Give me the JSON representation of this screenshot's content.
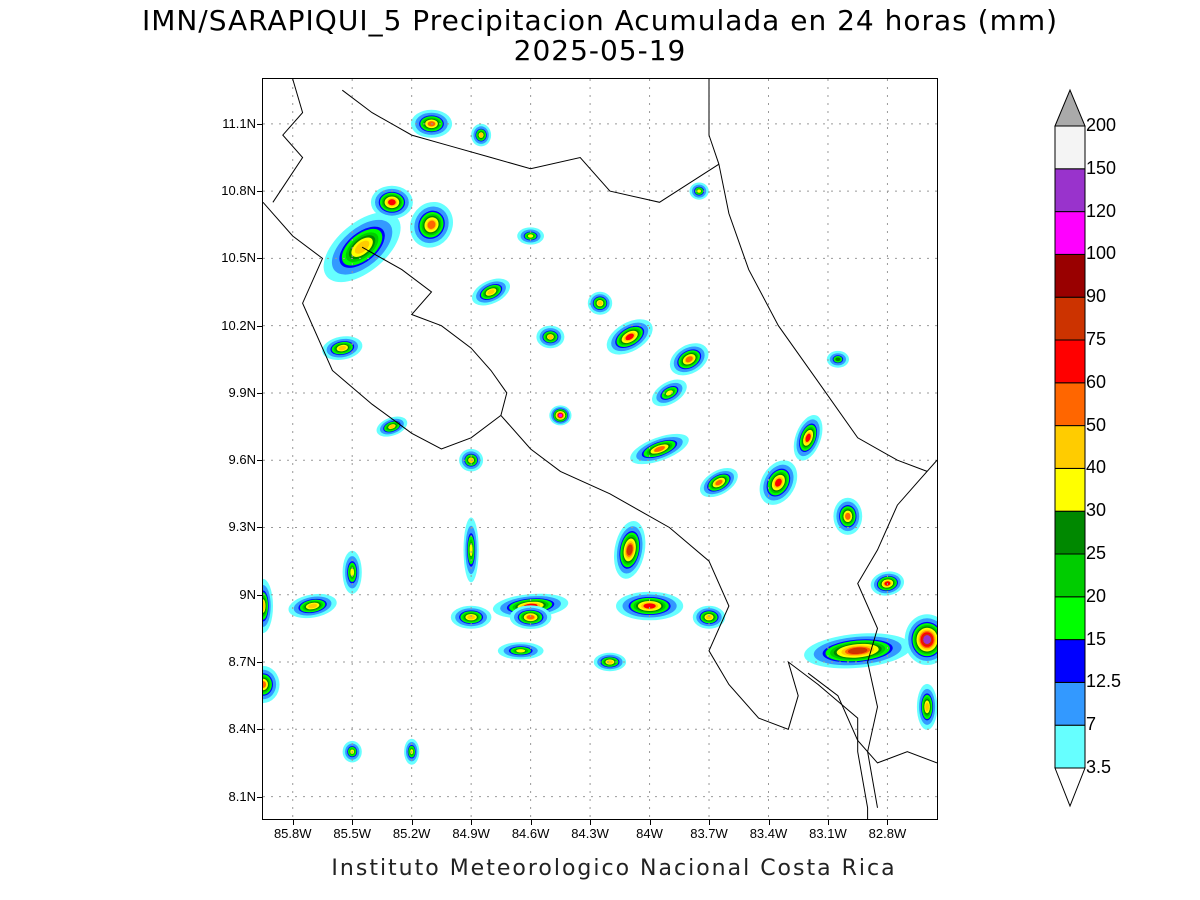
{
  "header": {
    "title_line1": "IMN/SARAPIQUI_5 Precipitacion Acumulada en 24 horas (mm)",
    "title_line2": "2025-05-19"
  },
  "footer": {
    "credit": "Instituto Meteorologico Nacional Costa Rica"
  },
  "map": {
    "lat_range": [
      8.0,
      11.3
    ],
    "lon_range": [
      -85.95,
      -82.55
    ],
    "lat_ticks": [
      {
        "value": 11.1,
        "label": "11.1N"
      },
      {
        "value": 10.8,
        "label": "10.8N"
      },
      {
        "value": 10.5,
        "label": "10.5N"
      },
      {
        "value": 10.2,
        "label": "10.2N"
      },
      {
        "value": 9.9,
        "label": "9.9N"
      },
      {
        "value": 9.6,
        "label": "9.6N"
      },
      {
        "value": 9.3,
        "label": "9.3N"
      },
      {
        "value": 9.0,
        "label": "9N"
      },
      {
        "value": 8.7,
        "label": "8.7N"
      },
      {
        "value": 8.4,
        "label": "8.4N"
      },
      {
        "value": 8.1,
        "label": "8.1N"
      }
    ],
    "lon_ticks": [
      {
        "value": -85.8,
        "label": "85.8W"
      },
      {
        "value": -85.5,
        "label": "85.5W"
      },
      {
        "value": -85.2,
        "label": "85.2W"
      },
      {
        "value": -84.9,
        "label": "84.9W"
      },
      {
        "value": -84.6,
        "label": "84.6W"
      },
      {
        "value": -84.3,
        "label": "84.3W"
      },
      {
        "value": -84.0,
        "label": "84W"
      },
      {
        "value": -83.7,
        "label": "83.7W"
      },
      {
        "value": -83.4,
        "label": "83.4W"
      },
      {
        "value": -83.1,
        "label": "83.1W"
      },
      {
        "value": -82.8,
        "label": "82.8W"
      }
    ],
    "grid": true
  },
  "legend": {
    "bins": [
      {
        "label": "3.5",
        "color": "#66ffff"
      },
      {
        "label": "7",
        "color": "#3399ff"
      },
      {
        "label": "12.5",
        "color": "#0000ff"
      },
      {
        "label": "15",
        "color": "#00ff00"
      },
      {
        "label": "20",
        "color": "#00cc00"
      },
      {
        "label": "25",
        "color": "#008800"
      },
      {
        "label": "30",
        "color": "#ffff00"
      },
      {
        "label": "40",
        "color": "#ffcc00"
      },
      {
        "label": "50",
        "color": "#ff6600"
      },
      {
        "label": "60",
        "color": "#ff0000"
      },
      {
        "label": "75",
        "color": "#cc3300"
      },
      {
        "label": "90",
        "color": "#990000"
      },
      {
        "label": "100",
        "color": "#ff00ff"
      },
      {
        "label": "120",
        "color": "#9933cc"
      },
      {
        "label": "150",
        "color": "#f4f4f4"
      },
      {
        "label": "200",
        "color": "#aaaaaa"
      }
    ],
    "under_color": "#ffffff",
    "over_color": "#aaaaaa"
  },
  "precip_cells": [
    {
      "lon": -85.45,
      "lat": 10.55,
      "peak": 45,
      "ax": 0.12,
      "ay": 0.2,
      "rot": 50
    },
    {
      "lon": -85.3,
      "lat": 10.75,
      "peak": 60,
      "ax": 0.1,
      "ay": 0.07,
      "rot": 0
    },
    {
      "lon": -85.1,
      "lat": 10.65,
      "peak": 55,
      "ax": 0.1,
      "ay": 0.1,
      "rot": 30
    },
    {
      "lon": -85.1,
      "lat": 11.1,
      "peak": 50,
      "ax": 0.1,
      "ay": 0.06,
      "rot": 0
    },
    {
      "lon": -85.55,
      "lat": 10.1,
      "peak": 45,
      "ax": 0.1,
      "ay": 0.05,
      "rot": -10
    },
    {
      "lon": -84.8,
      "lat": 10.35,
      "peak": 45,
      "ax": 0.1,
      "ay": 0.05,
      "rot": -25
    },
    {
      "lon": -84.5,
      "lat": 10.15,
      "peak": 40,
      "ax": 0.07,
      "ay": 0.05,
      "rot": 0
    },
    {
      "lon": -84.1,
      "lat": 10.15,
      "peak": 60,
      "ax": 0.12,
      "ay": 0.06,
      "rot": -30
    },
    {
      "lon": -84.25,
      "lat": 10.3,
      "peak": 45,
      "ax": 0.06,
      "ay": 0.05,
      "rot": 0
    },
    {
      "lon": -83.8,
      "lat": 10.05,
      "peak": 55,
      "ax": 0.1,
      "ay": 0.06,
      "rot": -30
    },
    {
      "lon": -83.9,
      "lat": 9.9,
      "peak": 30,
      "ax": 0.1,
      "ay": 0.05,
      "rot": -30
    },
    {
      "lon": -84.45,
      "lat": 9.8,
      "peak": 100,
      "ax": 0.05,
      "ay": 0.04,
      "rot": 0
    },
    {
      "lon": -83.95,
      "lat": 9.65,
      "peak": 50,
      "ax": 0.15,
      "ay": 0.05,
      "rot": -20
    },
    {
      "lon": -83.65,
      "lat": 9.5,
      "peak": 55,
      "ax": 0.1,
      "ay": 0.05,
      "rot": -30
    },
    {
      "lon": -83.35,
      "lat": 9.5,
      "peak": 60,
      "ax": 0.08,
      "ay": 0.1,
      "rot": 30
    },
    {
      "lon": -83.2,
      "lat": 9.7,
      "peak": 60,
      "ax": 0.06,
      "ay": 0.1,
      "rot": 20
    },
    {
      "lon": -83.0,
      "lat": 9.35,
      "peak": 50,
      "ax": 0.07,
      "ay": 0.08,
      "rot": 0
    },
    {
      "lon": -84.9,
      "lat": 9.6,
      "peak": 40,
      "ax": 0.06,
      "ay": 0.05,
      "rot": 0
    },
    {
      "lon": -85.3,
      "lat": 9.75,
      "peak": 40,
      "ax": 0.08,
      "ay": 0.04,
      "rot": -20
    },
    {
      "lon": -84.1,
      "lat": 9.2,
      "peak": 75,
      "ax": 0.07,
      "ay": 0.12,
      "rot": 10
    },
    {
      "lon": -84.6,
      "lat": 8.95,
      "peak": 60,
      "ax": 0.18,
      "ay": 0.05,
      "rot": -5
    },
    {
      "lon": -84.9,
      "lat": 8.9,
      "peak": 45,
      "ax": 0.1,
      "ay": 0.05,
      "rot": 0
    },
    {
      "lon": -84.0,
      "lat": 8.95,
      "peak": 60,
      "ax": 0.16,
      "ay": 0.06,
      "rot": 0
    },
    {
      "lon": -83.7,
      "lat": 8.9,
      "peak": 45,
      "ax": 0.08,
      "ay": 0.05,
      "rot": 0
    },
    {
      "lon": -85.7,
      "lat": 8.95,
      "peak": 45,
      "ax": 0.12,
      "ay": 0.05,
      "rot": -10
    },
    {
      "lon": -85.95,
      "lat": 8.6,
      "peak": 50,
      "ax": 0.08,
      "ay": 0.08,
      "rot": 0
    },
    {
      "lon": -85.95,
      "lat": 8.95,
      "peak": 40,
      "ax": 0.05,
      "ay": 0.12,
      "rot": 0
    },
    {
      "lon": -82.95,
      "lat": 8.75,
      "peak": 75,
      "ax": 0.25,
      "ay": 0.07,
      "rot": -5
    },
    {
      "lon": -82.6,
      "lat": 8.8,
      "peak": 120,
      "ax": 0.1,
      "ay": 0.1,
      "rot": 0
    },
    {
      "lon": -82.8,
      "lat": 9.05,
      "peak": 60,
      "ax": 0.08,
      "ay": 0.05,
      "rot": -10
    },
    {
      "lon": -82.6,
      "lat": 8.5,
      "peak": 45,
      "ax": 0.05,
      "ay": 0.1,
      "rot": 0
    },
    {
      "lon": -84.2,
      "lat": 8.7,
      "peak": 45,
      "ax": 0.08,
      "ay": 0.04,
      "rot": 0
    },
    {
      "lon": -84.6,
      "lat": 8.9,
      "peak": 55,
      "ax": 0.1,
      "ay": 0.05,
      "rot": 0
    },
    {
      "lon": -84.65,
      "lat": 8.75,
      "peak": 30,
      "ax": 0.12,
      "ay": 0.04,
      "rot": 0
    },
    {
      "lon": -85.5,
      "lat": 8.3,
      "peak": 30,
      "ax": 0.05,
      "ay": 0.05,
      "rot": 0
    },
    {
      "lon": -85.2,
      "lat": 8.3,
      "peak": 30,
      "ax": 0.04,
      "ay": 0.06,
      "rot": 0
    },
    {
      "lon": -84.9,
      "lat": 9.2,
      "peak": 30,
      "ax": 0.04,
      "ay": 0.15,
      "rot": 0
    },
    {
      "lon": -85.5,
      "lat": 9.1,
      "peak": 30,
      "ax": 0.05,
      "ay": 0.1,
      "rot": 0
    },
    {
      "lon": -83.05,
      "lat": 10.05,
      "peak": 25,
      "ax": 0.06,
      "ay": 0.04,
      "rot": 0
    },
    {
      "lon": -83.75,
      "lat": 10.8,
      "peak": 30,
      "ax": 0.05,
      "ay": 0.04,
      "rot": 0
    },
    {
      "lon": -84.85,
      "lat": 11.05,
      "peak": 40,
      "ax": 0.05,
      "ay": 0.05,
      "rot": 0
    },
    {
      "lon": -84.6,
      "lat": 10.6,
      "peak": 30,
      "ax": 0.07,
      "ay": 0.04,
      "rot": 0
    }
  ]
}
